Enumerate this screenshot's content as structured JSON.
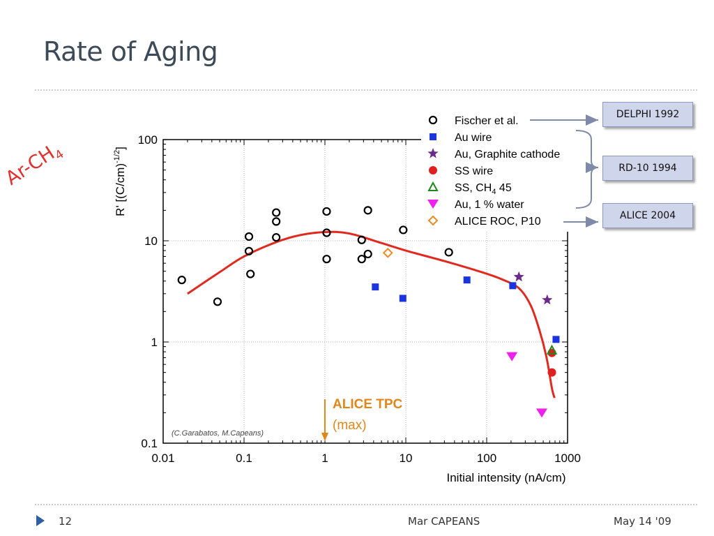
{
  "slide": {
    "title": "Rate of Aging",
    "side_label_main": "Ar-CH",
    "side_label_sub": "4",
    "credit": "(C.Garabatos, M.Capeans)",
    "annotation_line1": "ALICE TPC",
    "annotation_line2": "(max)"
  },
  "callouts": {
    "delphi": "DELPHI 1992",
    "rd10": "RD-10  1994",
    "alice": "ALICE  2004"
  },
  "footer": {
    "page_number": "12",
    "author": "Mar CAPEANS",
    "date": "May 14 '09"
  },
  "colors": {
    "title": "#3d4a57",
    "accent_red": "#e03030",
    "fit_curve": "#e02a1f",
    "arrow_orange": "#e0861a",
    "callout_fill": "#cfd5ea"
  },
  "chart_data": {
    "type": "scatter",
    "xlabel": "Initial intensity (nA/cm)",
    "ylabel_main": "R' [(C/cm)",
    "ylabel_exp": "-1/2",
    "ylabel_end": "]",
    "x_scale": "log",
    "y_scale": "log",
    "xlim": [
      0.01,
      1000
    ],
    "ylim": [
      0.1,
      100
    ],
    "x_ticks": [
      0.01,
      0.1,
      1,
      10,
      100,
      1000
    ],
    "x_tick_labels": [
      "0.01",
      "0.1",
      "1",
      "10",
      "100",
      "1000"
    ],
    "y_ticks": [
      0.1,
      1,
      10,
      100
    ],
    "y_tick_labels": [
      "0.1",
      "1",
      "10",
      "100"
    ],
    "grid": true,
    "legend_position": "top-right",
    "series": [
      {
        "name": "Fischer et al.",
        "marker": "open-circle",
        "color": "#000000",
        "points": [
          [
            0.017,
            4.1
          ],
          [
            0.047,
            2.5
          ],
          [
            0.115,
            11.0
          ],
          [
            0.115,
            7.9
          ],
          [
            0.12,
            4.7
          ],
          [
            0.25,
            19.0
          ],
          [
            0.25,
            15.5
          ],
          [
            0.25,
            10.8
          ],
          [
            1.05,
            19.5
          ],
          [
            1.05,
            12.0
          ],
          [
            1.05,
            6.6
          ],
          [
            2.85,
            10.2
          ],
          [
            2.85,
            6.6
          ],
          [
            3.4,
            20.0
          ],
          [
            3.4,
            7.4
          ],
          [
            9.3,
            12.8
          ],
          [
            34,
            7.7
          ]
        ]
      },
      {
        "name": "Au wire",
        "marker": "square",
        "color": "#1a34e0",
        "points": [
          [
            4.2,
            3.5
          ],
          [
            9.2,
            2.7
          ],
          [
            57,
            4.1
          ],
          [
            210,
            3.6
          ],
          [
            720,
            1.06
          ]
        ]
      },
      {
        "name": "Au, Graphite cathode",
        "marker": "star",
        "color": "#6a2a8a",
        "points": [
          [
            250,
            4.4
          ],
          [
            560,
            2.6
          ]
        ]
      },
      {
        "name": "SS wire",
        "marker": "filled-circle",
        "color": "#e02020",
        "points": [
          [
            640,
            0.78
          ],
          [
            640,
            0.5
          ]
        ]
      },
      {
        "name": "SS, CH",
        "name_sub": "4",
        "name_tail": " 45",
        "marker": "open-triangle",
        "color": "#1a8a1a",
        "points": [
          [
            640,
            0.83
          ]
        ]
      },
      {
        "name": "Au, 1 % water",
        "marker": "down-triangle",
        "color": "#f020f0",
        "points": [
          [
            205,
            0.72
          ],
          [
            480,
            0.2
          ]
        ]
      },
      {
        "name": "ALICE ROC, P10",
        "marker": "open-diamond",
        "color": "#f08a20",
        "points": [
          [
            6.0,
            7.6
          ]
        ]
      }
    ],
    "fit_curve": {
      "points": [
        [
          0.02,
          3.0
        ],
        [
          0.05,
          4.9
        ],
        [
          0.1,
          7.0
        ],
        [
          0.25,
          9.7
        ],
        [
          0.5,
          11.4
        ],
        [
          1.0,
          12.2
        ],
        [
          2.0,
          11.8
        ],
        [
          5.0,
          9.5
        ],
        [
          10,
          8.0
        ],
        [
          30,
          6.3
        ],
        [
          80,
          5.0
        ],
        [
          150,
          4.2
        ],
        [
          250,
          3.4
        ],
        [
          350,
          2.3
        ],
        [
          450,
          1.3
        ],
        [
          550,
          0.7
        ],
        [
          640,
          0.35
        ],
        [
          690,
          0.28
        ]
      ]
    },
    "marker_line_x": 1.0
  }
}
